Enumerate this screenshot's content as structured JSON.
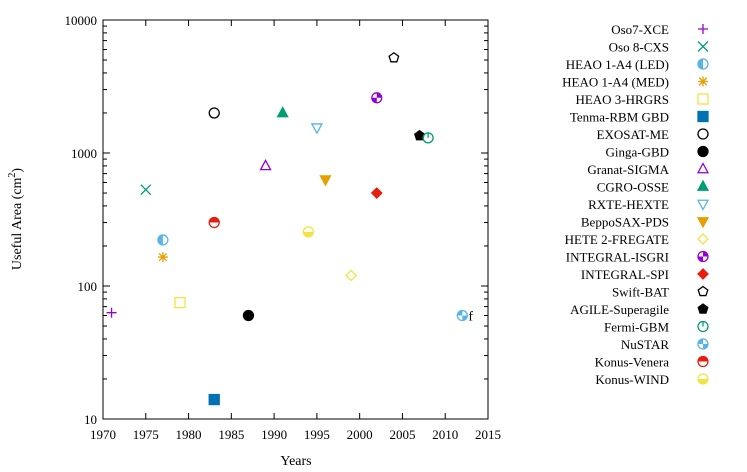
{
  "chart_data": {
    "type": "scatter",
    "title": "",
    "xlabel": "Years",
    "ylabel": "Useful Area (cm",
    "ylabel_sup": "2",
    "ylabel_close": ")",
    "xscale": "linear",
    "yscale": "log",
    "xlim": [
      1970,
      2015
    ],
    "ylim": [
      10,
      10000
    ],
    "x_ticks": [
      1970,
      1975,
      1980,
      1985,
      1990,
      1995,
      2000,
      2005,
      2010,
      2015
    ],
    "x_tick_labels": [
      "1970",
      "1975",
      "1980",
      "1985",
      "1990",
      "1995",
      "2000",
      "2005",
      "2010",
      "2015"
    ],
    "y_ticks": [
      10,
      100,
      1000,
      10000
    ],
    "y_tick_labels": [
      "10",
      "100",
      "1000",
      "10000"
    ],
    "grid": false,
    "legend_position": "right",
    "series": [
      {
        "name": "Oso7-XCE",
        "x": 1971,
        "y": 63,
        "color": "#9400d3",
        "marker": "plus"
      },
      {
        "name": "Oso 8-CXS",
        "x": 1975,
        "y": 530,
        "color": "#009e73",
        "marker": "cross"
      },
      {
        "name": "HEAO 1-A4 (LED)",
        "x": 1977,
        "y": 222,
        "color": "#56b4e9",
        "marker": "circle-half-left"
      },
      {
        "name": "HEAO 1-A4 (MED)",
        "x": 1977,
        "y": 165,
        "color": "#e69f00",
        "marker": "star"
      },
      {
        "name": "HEAO 3-HRGRS",
        "x": 1979,
        "y": 75,
        "color": "#f0e442",
        "marker": "square-open"
      },
      {
        "name": "Tenma-RBM GBD",
        "x": 1983,
        "y": 14,
        "color": "#0072b2",
        "marker": "square-filled"
      },
      {
        "name": "EXOSAT-ME",
        "x": 1983,
        "y": 2000,
        "color": "#000000",
        "marker": "circle-open"
      },
      {
        "name": "Ginga-GBD",
        "x": 1987,
        "y": 60,
        "color": "#000000",
        "marker": "circle-filled"
      },
      {
        "name": "Granat-SIGMA",
        "x": 1989,
        "y": 800,
        "color": "#9400d3",
        "marker": "triangle-open"
      },
      {
        "name": "CGRO-OSSE",
        "x": 1991,
        "y": 2000,
        "color": "#009e73",
        "marker": "triangle-filled"
      },
      {
        "name": "RXTE-HEXTE",
        "x": 1995,
        "y": 1550,
        "color": "#56b4e9",
        "marker": "triangle-down-open"
      },
      {
        "name": "BeppoSAX-PDS",
        "x": 1996,
        "y": 630,
        "color": "#e69f00",
        "marker": "triangle-down-filled"
      },
      {
        "name": "HETE 2-FREGATE",
        "x": 1999,
        "y": 120,
        "color": "#f0e442",
        "marker": "diamond-open"
      },
      {
        "name": "INTEGRAL-ISGRI",
        "x": 2002,
        "y": 2600,
        "color": "#9400d3",
        "marker": "circle-quarters"
      },
      {
        "name": "INTEGRAL-SPI",
        "x": 2002,
        "y": 500,
        "color": "#e51e10",
        "marker": "diamond-filled"
      },
      {
        "name": "Swift-BAT",
        "x": 2004,
        "y": 5200,
        "color": "#000000",
        "marker": "pentagon-open"
      },
      {
        "name": "AGILE-Superagile",
        "x": 2007,
        "y": 1350,
        "color": "#000000",
        "marker": "pentagon-filled"
      },
      {
        "name": "Fermi-GBM",
        "x": 2008,
        "y": 1300,
        "color": "#009e73",
        "marker": "circle-bar"
      },
      {
        "name": "NuSTAR",
        "x": 2012,
        "y": 60,
        "color": "#56b4e9",
        "marker": "circle-quarter"
      },
      {
        "name": "Konus-Venera",
        "x": 1983,
        "y": 300,
        "color": "#e51e10",
        "marker": "circle-half-top"
      },
      {
        "name": "Konus-WIND",
        "x": 1994,
        "y": 255,
        "color": "#f0e442",
        "marker": "circle-half-bottom"
      }
    ],
    "annotations": [
      {
        "text": "f",
        "x": 2012.7,
        "y": 60
      }
    ]
  }
}
